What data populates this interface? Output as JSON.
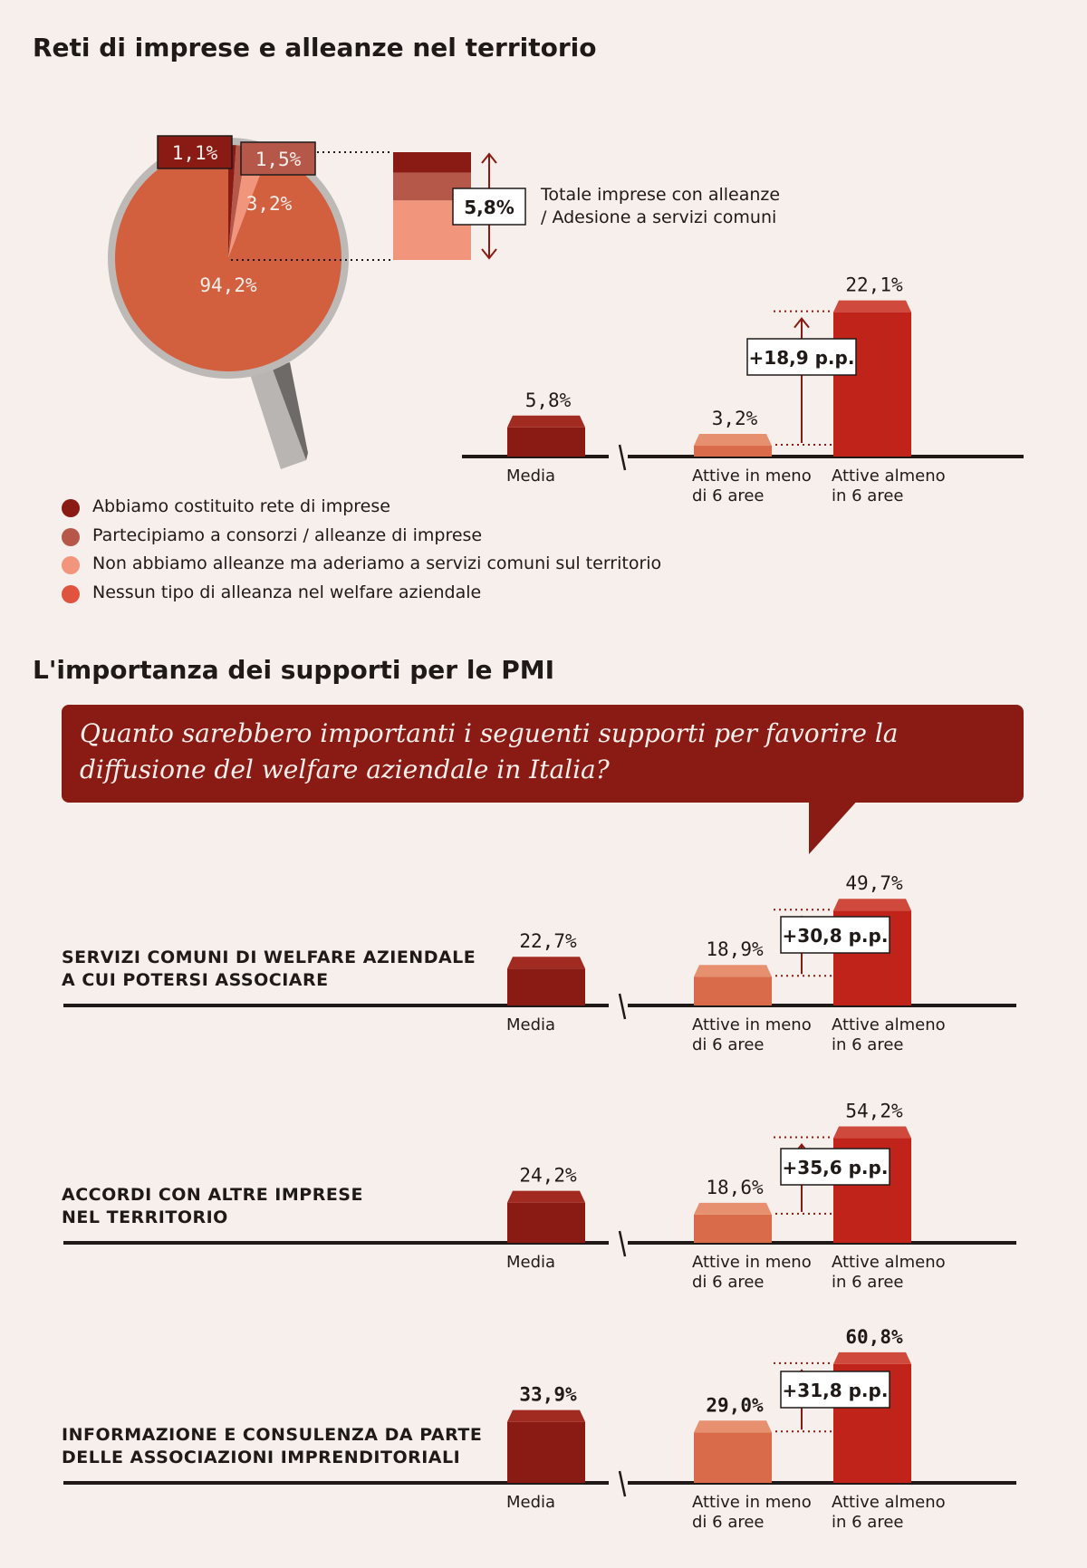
{
  "section1": {
    "title": "Reti di imprese e alleanze nel territorio",
    "pie": {
      "slices": [
        {
          "label": "1,1%",
          "value": 1.1,
          "color": "#8a1a14"
        },
        {
          "label": "1,5%",
          "value": 1.5,
          "color": "#b5584a"
        },
        {
          "label": "3,2%",
          "value": 3.2,
          "color": "#f1957c"
        },
        {
          "label": "94,2%",
          "value": 94.2,
          "color": "#d2603f"
        }
      ]
    },
    "stack_total_label": "5,8%",
    "stack_caption_line1": "Totale imprese con alleanze",
    "stack_caption_line2": "/ Adesione a servizi comuni",
    "legend": [
      {
        "label": "Abbiamo costituito rete di imprese",
        "color": "#8a1a14"
      },
      {
        "label": "Partecipiamo a consorzi / alleanze di imprese",
        "color": "#b5584a"
      },
      {
        "label": "Non abbiamo alleanze ma aderiamo a servizi comuni sul territorio",
        "color": "#f1957c"
      },
      {
        "label": "Nessun tipo di alleanza nel welfare aziendale",
        "color": "#e0543f"
      }
    ]
  },
  "section2": {
    "title": "L'importanza dei supporti per le PMI",
    "question": "Quanto sarebbero importanti i seguenti supporti per favorire la diffusione del welfare aziendale in Italia?"
  },
  "colors": {
    "media": "#8a1a14",
    "meno6": "#d96a4a",
    "almeno6": "#c0231a",
    "arrow": "#8a1a14"
  },
  "chart_data": [
    {
      "type": "bar",
      "categories": [
        "Media",
        "Attive in meno di 6 aree",
        "Attive almeno in 6 aree"
      ],
      "values": [
        5.8,
        3.2,
        22.1
      ],
      "value_labels": [
        "5,8%",
        "3,2%",
        "22,1%"
      ],
      "diff_label": "+18,9 p.p."
    },
    {
      "type": "bar",
      "row_label": [
        "SERVIZI COMUNI DI WELFARE AZIENDALE",
        "A CUI POTERSI ASSOCIARE"
      ],
      "categories": [
        "Media",
        "Attive in meno di 6 aree",
        "Attive almeno in 6 aree"
      ],
      "values": [
        22.7,
        18.9,
        49.7
      ],
      "value_labels": [
        "22,7%",
        "18,9%",
        "49,7%"
      ],
      "diff_label": "+30,8 p.p."
    },
    {
      "type": "bar",
      "row_label": [
        "ACCORDI CON ALTRE IMPRESE",
        "NEL TERRITORIO"
      ],
      "categories": [
        "Media",
        "Attive in meno di 6 aree",
        "Attive almeno in 6 aree"
      ],
      "values": [
        24.2,
        18.6,
        54.2
      ],
      "value_labels": [
        "24,2%",
        "18,6%",
        "54,2%"
      ],
      "diff_label": "+35,6 p.p."
    },
    {
      "type": "bar",
      "row_label": [
        "INFORMAZIONE E CONSULENZA DA PARTE",
        "DELLE ASSOCIAZIONI IMPRENDITORIALI"
      ],
      "categories": [
        "Media",
        "Attive in meno di 6 aree",
        "Attive almeno in 6 aree"
      ],
      "values": [
        33.9,
        29.0,
        60.8
      ],
      "value_labels": [
        "33,9%",
        "29,0%",
        "60,8%"
      ],
      "diff_label": "+31,8 p.p."
    }
  ]
}
